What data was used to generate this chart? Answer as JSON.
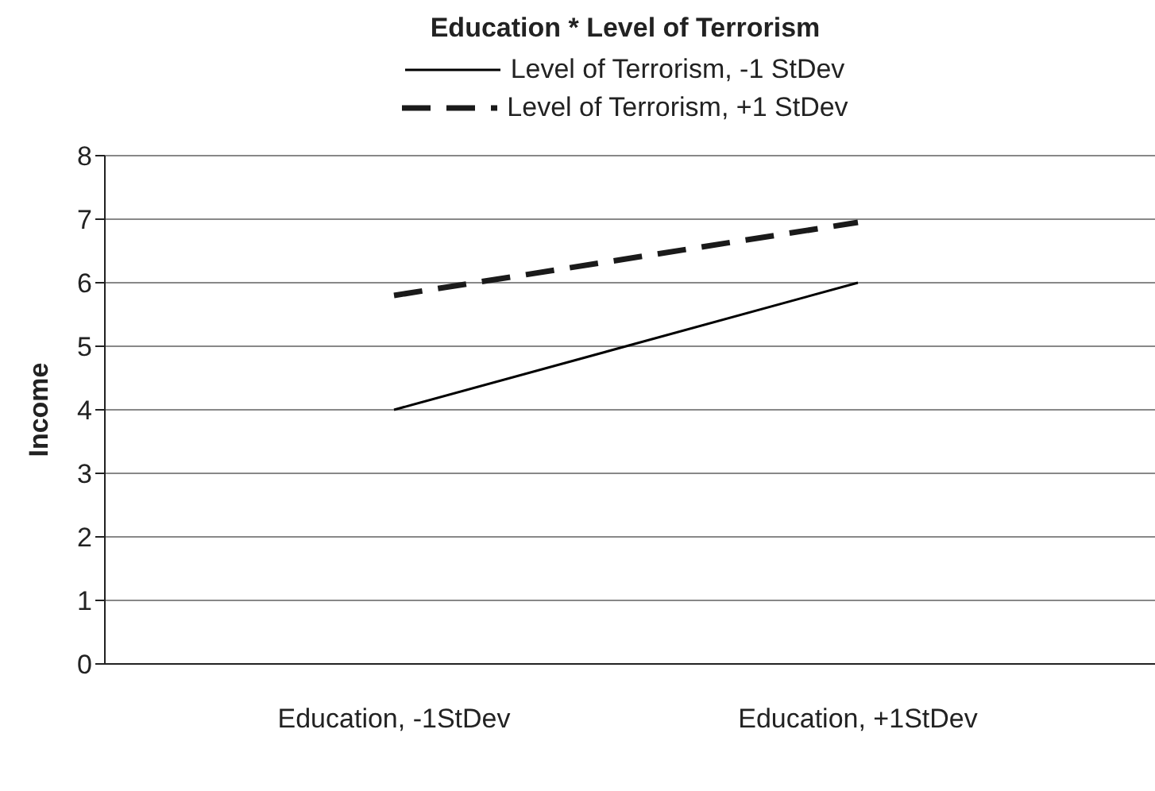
{
  "chart_data": {
    "type": "line",
    "title": "Education * Level of Terrorism",
    "ylabel": "Income",
    "categories": [
      "Education, -1StDev",
      "Education, +1StDev"
    ],
    "series": [
      {
        "name": "Level of Terrorism, -1 StDev",
        "color": "#000000",
        "line_style": "solid",
        "values": [
          4.0,
          6.0
        ]
      },
      {
        "name": "Level of Terrorism, +1 StDev",
        "color": "#1a1a1a",
        "line_style": "dashed",
        "values": [
          5.8,
          6.95
        ]
      }
    ],
    "ylim": [
      0,
      8
    ],
    "yticks": [
      0,
      1,
      2,
      3,
      4,
      5,
      6,
      7,
      8
    ],
    "grid": "y",
    "legend": "top",
    "marker": "none"
  }
}
